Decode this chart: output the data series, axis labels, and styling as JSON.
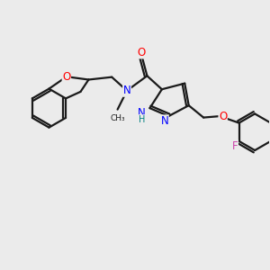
{
  "bg_color": "#ebebeb",
  "bond_color": "#1a1a1a",
  "bond_width": 1.6,
  "atom_colors": {
    "O": "#ff0000",
    "N": "#0000ff",
    "F": "#cc44aa",
    "H_label": "#008080",
    "C": "#1a1a1a"
  },
  "font_size_atom": 8.5,
  "font_size_small": 7.5,
  "xlim": [
    0,
    10
  ],
  "ylim": [
    0,
    10
  ]
}
